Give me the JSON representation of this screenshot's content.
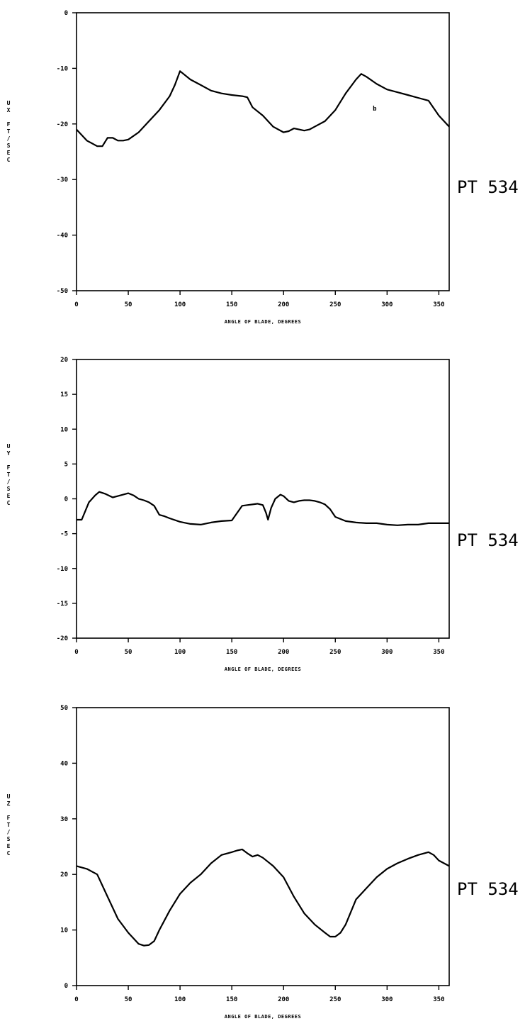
{
  "chart_data": [
    {
      "type": "line",
      "xlabel": "ANGLE OF BLADE, DEGREES",
      "ylabel": [
        "U",
        "X",
        "",
        "F",
        "T",
        "/",
        "S",
        "E",
        "C"
      ],
      "side_label": "PT 534",
      "xlim": [
        0,
        360
      ],
      "ylim": [
        -50,
        0
      ],
      "xticks": [
        "0",
        "50",
        "100",
        "150",
        "200",
        "250",
        "300",
        "350"
      ],
      "yticks": [
        "0",
        "-10",
        "-20",
        "-30",
        "-40",
        "-50"
      ],
      "grid": false,
      "series": [
        {
          "x": [
            0,
            10,
            20,
            25,
            30,
            35,
            40,
            45,
            50,
            60,
            70,
            80,
            90,
            95,
            100,
            110,
            120,
            130,
            140,
            150,
            160,
            165,
            170,
            180,
            190,
            200,
            205,
            210,
            215,
            220,
            225,
            230,
            240,
            250,
            260,
            270,
            275,
            280,
            290,
            300,
            310,
            320,
            330,
            340,
            350,
            360
          ],
          "y": [
            -21,
            -23,
            -24,
            -24,
            -22.5,
            -22.5,
            -23,
            -23,
            -22.8,
            -21.5,
            -19.5,
            -17.5,
            -15,
            -13,
            -10.5,
            -12,
            -13,
            -14,
            -14.5,
            -14.8,
            -15,
            -15.2,
            -17,
            -18.5,
            -20.5,
            -21.5,
            -21.3,
            -20.8,
            -21,
            -21.2,
            -21,
            -20.5,
            -19.5,
            -17.5,
            -14.5,
            -12,
            -11,
            -11.5,
            -12.8,
            -13.8,
            -14.3,
            -14.8,
            -15.3,
            -15.8,
            -18.5,
            -20.5
          ]
        }
      ],
      "annotations": [
        "b"
      ]
    },
    {
      "type": "line",
      "xlabel": "ANGLE OF BLADE, DEGREES",
      "ylabel": [
        "U",
        "Y",
        "",
        "F",
        "T",
        "/",
        "S",
        "E",
        "C"
      ],
      "side_label": "PT 534",
      "xlim": [
        0,
        360
      ],
      "ylim": [
        -20,
        20
      ],
      "xticks": [
        "0",
        "50",
        "100",
        "150",
        "200",
        "250",
        "300",
        "350"
      ],
      "yticks": [
        "20",
        "15",
        "10",
        "5",
        "0",
        "-5",
        "-10",
        "-15",
        "-20"
      ],
      "grid": false,
      "series": [
        {
          "x": [
            0,
            5,
            12,
            18,
            22,
            28,
            35,
            40,
            45,
            50,
            55,
            60,
            65,
            70,
            75,
            80,
            85,
            90,
            100,
            110,
            120,
            130,
            140,
            150,
            160,
            165,
            170,
            175,
            180,
            183,
            185,
            188,
            192,
            197,
            200,
            205,
            210,
            215,
            220,
            225,
            230,
            235,
            240,
            245,
            250,
            260,
            270,
            280,
            290,
            300,
            310,
            320,
            330,
            340,
            350,
            360
          ],
          "y": [
            -3,
            -3,
            -0.5,
            0.5,
            1,
            0.7,
            0.2,
            0.4,
            0.6,
            0.8,
            0.5,
            0,
            -0.2,
            -0.5,
            -1,
            -2.3,
            -2.5,
            -2.8,
            -3.3,
            -3.6,
            -3.7,
            -3.4,
            -3.2,
            -3.1,
            -1,
            -0.9,
            -0.8,
            -0.7,
            -0.9,
            -2,
            -3,
            -1.3,
            0,
            0.6,
            0.4,
            -0.3,
            -0.5,
            -0.3,
            -0.2,
            -0.2,
            -0.3,
            -0.5,
            -0.8,
            -1.5,
            -2.6,
            -3.2,
            -3.4,
            -3.5,
            -3.5,
            -3.7,
            -3.8,
            -3.7,
            -3.7,
            -3.5,
            -3.5,
            -3.5
          ]
        }
      ]
    },
    {
      "type": "line",
      "xlabel": "ANGLE OF BLADE, DEGREES",
      "ylabel": [
        "U",
        "Z",
        "",
        "F",
        "T",
        "/",
        "S",
        "E",
        "C"
      ],
      "side_label": "PT 534",
      "xlim": [
        0,
        360
      ],
      "ylim": [
        0,
        50
      ],
      "xticks": [
        "0",
        "50",
        "100",
        "150",
        "200",
        "250",
        "300",
        "350"
      ],
      "yticks": [
        "50",
        "40",
        "30",
        "20",
        "10",
        "0"
      ],
      "grid": false,
      "series": [
        {
          "x": [
            0,
            10,
            20,
            30,
            40,
            50,
            60,
            65,
            70,
            75,
            80,
            90,
            100,
            110,
            120,
            130,
            140,
            150,
            155,
            160,
            165,
            170,
            175,
            180,
            190,
            200,
            210,
            220,
            230,
            240,
            245,
            250,
            255,
            260,
            270,
            280,
            290,
            300,
            310,
            320,
            330,
            340,
            345,
            350,
            360
          ],
          "y": [
            21.5,
            21,
            20,
            16,
            12,
            9.5,
            7.5,
            7.2,
            7.3,
            8,
            10,
            13.5,
            16.5,
            18.5,
            20,
            22,
            23.5,
            24,
            24.3,
            24.5,
            23.8,
            23.2,
            23.5,
            23,
            21.5,
            19.5,
            16,
            13,
            11,
            9.5,
            8.8,
            8.8,
            9.5,
            11,
            15.5,
            17.5,
            19.5,
            21,
            22,
            22.8,
            23.5,
            24,
            23.5,
            22.5,
            21.5
          ]
        }
      ]
    }
  ]
}
